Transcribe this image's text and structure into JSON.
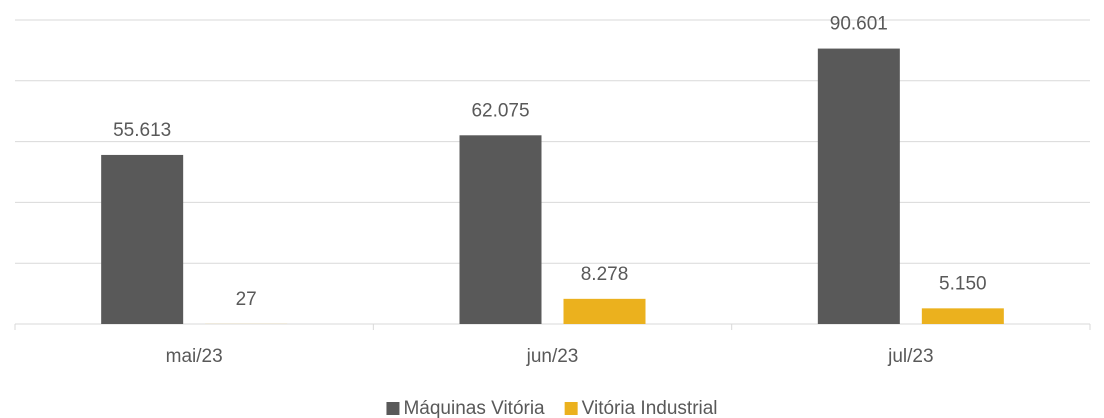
{
  "chart_data": {
    "type": "bar",
    "categories": [
      "mai/23",
      "jun/23",
      "jul/23"
    ],
    "series": [
      {
        "name": "Máquinas Vitória",
        "color": "#595959",
        "values": [
          55613,
          62075,
          90601
        ],
        "value_labels": [
          "55.613",
          "62.075",
          "90.601"
        ]
      },
      {
        "name": "Vitória Industrial",
        "color": "#EBB11E",
        "values": [
          27,
          8278,
          5150
        ],
        "value_labels": [
          "27",
          "8.278",
          "5.150"
        ]
      }
    ],
    "ylim": [
      0,
      100000
    ],
    "yticks": [
      0,
      20000,
      40000,
      60000,
      80000,
      100000
    ],
    "grid": true,
    "legend": "bottom"
  }
}
